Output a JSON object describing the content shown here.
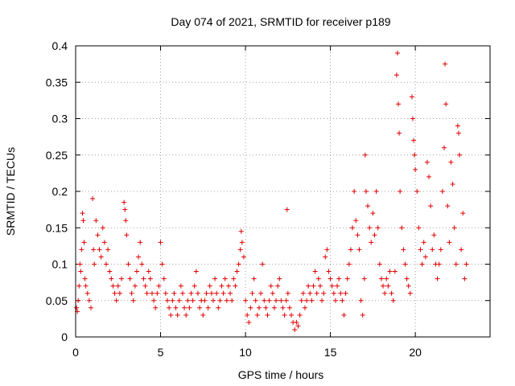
{
  "chart_data": {
    "type": "scatter",
    "title": "Day 074 of 2021, SRMTID for receiver p189",
    "xlabel": "GPS time / hours",
    "ylabel": "SRMTID / TECUs",
    "xlim": [
      0,
      24.4
    ],
    "ylim": [
      0,
      0.4
    ],
    "x_ticks": [
      0,
      5,
      10,
      15,
      20
    ],
    "x_tick_labels": [
      "0",
      "5",
      "10",
      "15",
      "20"
    ],
    "y_ticks": [
      0,
      0.05,
      0.1,
      0.15,
      0.2,
      0.25,
      0.3,
      0.35,
      0.4
    ],
    "y_tick_labels": [
      "0",
      "0.05",
      "0.1",
      "0.15",
      "0.2",
      "0.25",
      "0.3",
      "0.35",
      "0.4"
    ],
    "grid": true,
    "marker": "plus",
    "color": "#e00000",
    "series": [
      {
        "name": "SRMTID",
        "points": [
          [
            0.05,
            0.04
          ],
          [
            0.1,
            0.035
          ],
          [
            0.15,
            0.05
          ],
          [
            0.2,
            0.07
          ],
          [
            0.25,
            0.1
          ],
          [
            0.3,
            0.09
          ],
          [
            0.35,
            0.12
          ],
          [
            0.4,
            0.17
          ],
          [
            0.45,
            0.16
          ],
          [
            0.5,
            0.13
          ],
          [
            0.55,
            0.08
          ],
          [
            0.6,
            0.07
          ],
          [
            0.7,
            0.06
          ],
          [
            0.8,
            0.05
          ],
          [
            0.9,
            0.04
          ],
          [
            1.0,
            0.19
          ],
          [
            1.05,
            0.12
          ],
          [
            1.1,
            0.1
          ],
          [
            1.2,
            0.16
          ],
          [
            1.3,
            0.14
          ],
          [
            1.4,
            0.12
          ],
          [
            1.5,
            0.11
          ],
          [
            1.6,
            0.15
          ],
          [
            1.7,
            0.13
          ],
          [
            1.8,
            0.1
          ],
          [
            1.9,
            0.12
          ],
          [
            2.0,
            0.09
          ],
          [
            2.1,
            0.08
          ],
          [
            2.2,
            0.07
          ],
          [
            2.3,
            0.06
          ],
          [
            2.4,
            0.05
          ],
          [
            2.5,
            0.07
          ],
          [
            2.6,
            0.06
          ],
          [
            2.7,
            0.08
          ],
          [
            2.85,
            0.185
          ],
          [
            2.9,
            0.175
          ],
          [
            2.95,
            0.16
          ],
          [
            3.0,
            0.14
          ],
          [
            3.1,
            0.1
          ],
          [
            3.2,
            0.08
          ],
          [
            3.3,
            0.06
          ],
          [
            3.4,
            0.05
          ],
          [
            3.5,
            0.07
          ],
          [
            3.6,
            0.09
          ],
          [
            3.7,
            0.11
          ],
          [
            3.8,
            0.13
          ],
          [
            3.9,
            0.1
          ],
          [
            4.0,
            0.08
          ],
          [
            4.1,
            0.07
          ],
          [
            4.2,
            0.06
          ],
          [
            4.3,
            0.09
          ],
          [
            4.4,
            0.08
          ],
          [
            4.5,
            0.06
          ],
          [
            4.6,
            0.05
          ],
          [
            4.7,
            0.04
          ],
          [
            4.8,
            0.06
          ],
          [
            4.9,
            0.07
          ],
          [
            5.0,
            0.13
          ],
          [
            5.1,
            0.1
          ],
          [
            5.2,
            0.08
          ],
          [
            5.3,
            0.06
          ],
          [
            5.4,
            0.05
          ],
          [
            5.5,
            0.04
          ],
          [
            5.6,
            0.03
          ],
          [
            5.7,
            0.05
          ],
          [
            5.8,
            0.06
          ],
          [
            5.9,
            0.04
          ],
          [
            6.0,
            0.03
          ],
          [
            6.1,
            0.05
          ],
          [
            6.2,
            0.07
          ],
          [
            6.3,
            0.06
          ],
          [
            6.4,
            0.04
          ],
          [
            6.5,
            0.03
          ],
          [
            6.6,
            0.05
          ],
          [
            6.7,
            0.04
          ],
          [
            6.8,
            0.06
          ],
          [
            6.9,
            0.05
          ],
          [
            7.0,
            0.07
          ],
          [
            7.1,
            0.09
          ],
          [
            7.2,
            0.06
          ],
          [
            7.3,
            0.04
          ],
          [
            7.4,
            0.05
          ],
          [
            7.5,
            0.03
          ],
          [
            7.6,
            0.05
          ],
          [
            7.7,
            0.06
          ],
          [
            7.8,
            0.04
          ],
          [
            7.9,
            0.07
          ],
          [
            8.0,
            0.06
          ],
          [
            8.1,
            0.05
          ],
          [
            8.2,
            0.08
          ],
          [
            8.3,
            0.06
          ],
          [
            8.4,
            0.04
          ],
          [
            8.5,
            0.05
          ],
          [
            8.6,
            0.07
          ],
          [
            8.7,
            0.06
          ],
          [
            8.8,
            0.08
          ],
          [
            8.9,
            0.05
          ],
          [
            9.0,
            0.07
          ],
          [
            9.1,
            0.06
          ],
          [
            9.2,
            0.05
          ],
          [
            9.3,
            0.08
          ],
          [
            9.4,
            0.07
          ],
          [
            9.5,
            0.09
          ],
          [
            9.6,
            0.1
          ],
          [
            9.7,
            0.12
          ],
          [
            9.75,
            0.145
          ],
          [
            9.8,
            0.13
          ],
          [
            9.9,
            0.11
          ],
          [
            10.0,
            0.05
          ],
          [
            10.1,
            0.03
          ],
          [
            10.2,
            0.02
          ],
          [
            10.3,
            0.04
          ],
          [
            10.4,
            0.06
          ],
          [
            10.5,
            0.08
          ],
          [
            10.6,
            0.05
          ],
          [
            10.7,
            0.03
          ],
          [
            10.8,
            0.04
          ],
          [
            10.9,
            0.06
          ],
          [
            11.0,
            0.1
          ],
          [
            11.1,
            0.05
          ],
          [
            11.2,
            0.04
          ],
          [
            11.3,
            0.03
          ],
          [
            11.4,
            0.05
          ],
          [
            11.5,
            0.07
          ],
          [
            11.6,
            0.06
          ],
          [
            11.7,
            0.04
          ],
          [
            11.8,
            0.05
          ],
          [
            11.9,
            0.07
          ],
          [
            12.0,
            0.08
          ],
          [
            12.1,
            0.05
          ],
          [
            12.2,
            0.04
          ],
          [
            12.3,
            0.03
          ],
          [
            12.4,
            0.05
          ],
          [
            12.45,
            0.175
          ],
          [
            12.5,
            0.06
          ],
          [
            12.6,
            0.04
          ],
          [
            12.7,
            0.03
          ],
          [
            12.8,
            0.02
          ],
          [
            12.9,
            0.01
          ],
          [
            13.0,
            0.02
          ],
          [
            13.1,
            0.015
          ],
          [
            13.2,
            0.03
          ],
          [
            13.3,
            0.05
          ],
          [
            13.4,
            0.06
          ],
          [
            13.5,
            0.04
          ],
          [
            13.6,
            0.05
          ],
          [
            13.7,
            0.07
          ],
          [
            13.8,
            0.06
          ],
          [
            13.9,
            0.05
          ],
          [
            14.0,
            0.07
          ],
          [
            14.1,
            0.09
          ],
          [
            14.2,
            0.06
          ],
          [
            14.3,
            0.08
          ],
          [
            14.4,
            0.07
          ],
          [
            14.5,
            0.05
          ],
          [
            14.6,
            0.06
          ],
          [
            14.7,
            0.11
          ],
          [
            14.8,
            0.12
          ],
          [
            14.9,
            0.09
          ],
          [
            15.0,
            0.08
          ],
          [
            15.1,
            0.07
          ],
          [
            15.2,
            0.06
          ],
          [
            15.3,
            0.05
          ],
          [
            15.4,
            0.07
          ],
          [
            15.5,
            0.08
          ],
          [
            15.6,
            0.06
          ],
          [
            15.7,
            0.05
          ],
          [
            15.8,
            0.03
          ],
          [
            15.9,
            0.06
          ],
          [
            16.0,
            0.08
          ],
          [
            16.1,
            0.1
          ],
          [
            16.2,
            0.12
          ],
          [
            16.3,
            0.15
          ],
          [
            16.4,
            0.2
          ],
          [
            16.5,
            0.16
          ],
          [
            16.6,
            0.14
          ],
          [
            16.7,
            0.12
          ],
          [
            16.8,
            0.05
          ],
          [
            16.9,
            0.03
          ],
          [
            17.0,
            0.08
          ],
          [
            17.05,
            0.25
          ],
          [
            17.1,
            0.2
          ],
          [
            17.2,
            0.18
          ],
          [
            17.3,
            0.15
          ],
          [
            17.4,
            0.13
          ],
          [
            17.5,
            0.17
          ],
          [
            17.6,
            0.14
          ],
          [
            17.7,
            0.2
          ],
          [
            17.8,
            0.15
          ],
          [
            17.9,
            0.1
          ],
          [
            18.0,
            0.08
          ],
          [
            18.1,
            0.07
          ],
          [
            18.2,
            0.06
          ],
          [
            18.3,
            0.08
          ],
          [
            18.4,
            0.07
          ],
          [
            18.5,
            0.09
          ],
          [
            18.6,
            0.06
          ],
          [
            18.7,
            0.05
          ],
          [
            18.8,
            0.09
          ],
          [
            18.9,
            0.36
          ],
          [
            18.95,
            0.39
          ],
          [
            19.0,
            0.32
          ],
          [
            19.05,
            0.28
          ],
          [
            19.1,
            0.2
          ],
          [
            19.2,
            0.15
          ],
          [
            19.3,
            0.12
          ],
          [
            19.4,
            0.1
          ],
          [
            19.5,
            0.08
          ],
          [
            19.6,
            0.07
          ],
          [
            19.7,
            0.06
          ],
          [
            19.8,
            0.33
          ],
          [
            19.85,
            0.3
          ],
          [
            19.9,
            0.27
          ],
          [
            19.95,
            0.25
          ],
          [
            20.0,
            0.23
          ],
          [
            20.1,
            0.2
          ],
          [
            20.2,
            0.15
          ],
          [
            20.3,
            0.12
          ],
          [
            20.4,
            0.1
          ],
          [
            20.5,
            0.13
          ],
          [
            20.6,
            0.11
          ],
          [
            20.7,
            0.24
          ],
          [
            20.8,
            0.22
          ],
          [
            20.9,
            0.18
          ],
          [
            21.0,
            0.12
          ],
          [
            21.1,
            0.14
          ],
          [
            21.2,
            0.1
          ],
          [
            21.3,
            0.08
          ],
          [
            21.4,
            0.1
          ],
          [
            21.5,
            0.12
          ],
          [
            21.6,
            0.2
          ],
          [
            21.7,
            0.26
          ],
          [
            21.75,
            0.375
          ],
          [
            21.8,
            0.32
          ],
          [
            21.9,
            0.18
          ],
          [
            22.0,
            0.13
          ],
          [
            22.1,
            0.24
          ],
          [
            22.2,
            0.21
          ],
          [
            22.3,
            0.15
          ],
          [
            22.4,
            0.1
          ],
          [
            22.5,
            0.29
          ],
          [
            22.55,
            0.28
          ],
          [
            22.6,
            0.25
          ],
          [
            22.7,
            0.12
          ],
          [
            22.8,
            0.17
          ],
          [
            22.9,
            0.08
          ],
          [
            23.0,
            0.1
          ]
        ]
      }
    ]
  }
}
